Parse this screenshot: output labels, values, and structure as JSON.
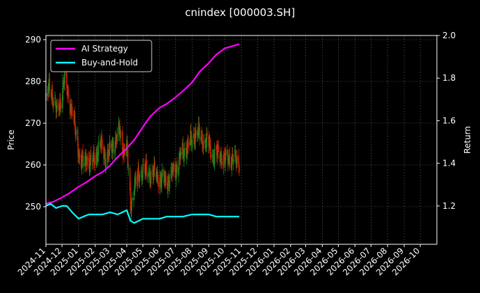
{
  "chart_data": {
    "type": "line",
    "title": "cnindex [000003.SH]",
    "ylabel_left": "Price",
    "ylabel_right": "Return",
    "ylim_left": [
      241,
      291
    ],
    "ylim_right": [
      1.02,
      2.0
    ],
    "yticks_left": [
      250,
      260,
      270,
      280,
      290
    ],
    "yticks_right": [
      1.2,
      1.4,
      1.6,
      1.8,
      2.0
    ],
    "ytick_labels_right": [
      "1.2",
      "1.4",
      "1.6",
      "1.8",
      "2.0"
    ],
    "x_tick_labels": [
      "2024-11",
      "2024-12",
      "2025-01",
      "2025-02",
      "2025-03",
      "2025-04",
      "2025-05",
      "2025-06",
      "2025-07",
      "2025-08",
      "2025-09",
      "2025-10",
      "2025-11",
      "2025-12",
      "2026-01",
      "2026-02",
      "2026-03",
      "2026-04",
      "2026-05",
      "2026-06",
      "2026-07",
      "2026-08",
      "2026-09",
      "2026-10"
    ],
    "xlim": [
      "2024-11-01",
      "2026-11-01"
    ],
    "grid": true,
    "legend_position": "top-left",
    "colors": {
      "up": "#1f8a1f",
      "down": "#cc2200",
      "ai": "#ff00ff",
      "bh": "#00ffff"
    },
    "price_close_points": [
      [
        "2024-11-01",
        275
      ],
      [
        "2024-11-08",
        279
      ],
      [
        "2024-11-15",
        276
      ],
      [
        "2024-11-22",
        272
      ],
      [
        "2024-11-29",
        276
      ],
      [
        "2024-12-06",
        281
      ],
      [
        "2024-12-13",
        276
      ],
      [
        "2024-12-20",
        273
      ],
      [
        "2024-12-27",
        267
      ],
      [
        "2025-01-03",
        262
      ],
      [
        "2025-01-10",
        260
      ],
      [
        "2025-01-17",
        262
      ],
      [
        "2025-01-24",
        260
      ],
      [
        "2025-02-01",
        262
      ],
      [
        "2025-02-10",
        265
      ],
      [
        "2025-02-20",
        262
      ],
      [
        "2025-03-01",
        263
      ],
      [
        "2025-03-10",
        266
      ],
      [
        "2025-03-18",
        268
      ],
      [
        "2025-03-25",
        264
      ],
      [
        "2025-04-01",
        264
      ],
      [
        "2025-04-08",
        250
      ],
      [
        "2025-04-15",
        255
      ],
      [
        "2025-04-22",
        257
      ],
      [
        "2025-05-01",
        259
      ],
      [
        "2025-05-10",
        258
      ],
      [
        "2025-05-20",
        258
      ],
      [
        "2025-06-01",
        257
      ],
      [
        "2025-06-10",
        256
      ],
      [
        "2025-06-20",
        257
      ],
      [
        "2025-07-01",
        259
      ],
      [
        "2025-07-10",
        262
      ],
      [
        "2025-07-20",
        264
      ],
      [
        "2025-08-01",
        266
      ],
      [
        "2025-08-10",
        268
      ],
      [
        "2025-08-20",
        266
      ],
      [
        "2025-09-01",
        265
      ],
      [
        "2025-09-10",
        262
      ],
      [
        "2025-09-20",
        263
      ],
      [
        "2025-10-01",
        261
      ],
      [
        "2025-10-10",
        262
      ],
      [
        "2025-10-20",
        261
      ],
      [
        "2025-10-28",
        261
      ]
    ],
    "series": [
      {
        "name": "AI Strategy",
        "color": "#ff00ff",
        "points": [
          [
            "2024-11-01",
            1.21
          ],
          [
            "2024-11-15",
            1.22
          ],
          [
            "2024-12-01",
            1.24
          ],
          [
            "2024-12-15",
            1.26
          ],
          [
            "2025-01-01",
            1.29
          ],
          [
            "2025-01-15",
            1.31
          ],
          [
            "2025-02-01",
            1.34
          ],
          [
            "2025-02-15",
            1.36
          ],
          [
            "2025-03-01",
            1.39
          ],
          [
            "2025-03-15",
            1.43
          ],
          [
            "2025-04-01",
            1.47
          ],
          [
            "2025-04-15",
            1.51
          ],
          [
            "2025-05-01",
            1.57
          ],
          [
            "2025-05-15",
            1.62
          ],
          [
            "2025-06-01",
            1.66
          ],
          [
            "2025-06-15",
            1.68
          ],
          [
            "2025-07-01",
            1.71
          ],
          [
            "2025-07-15",
            1.74
          ],
          [
            "2025-08-01",
            1.78
          ],
          [
            "2025-08-15",
            1.83
          ],
          [
            "2025-09-01",
            1.87
          ],
          [
            "2025-09-15",
            1.91
          ],
          [
            "2025-10-01",
            1.94
          ],
          [
            "2025-10-15",
            1.95
          ],
          [
            "2025-10-28",
            1.96
          ]
        ]
      },
      {
        "name": "Buy-and-Hold",
        "color": "#00ffff",
        "points": [
          [
            "2024-11-01",
            1.2
          ],
          [
            "2024-11-10",
            1.21
          ],
          [
            "2024-11-20",
            1.19
          ],
          [
            "2024-12-01",
            1.2
          ],
          [
            "2024-12-10",
            1.2
          ],
          [
            "2024-12-20",
            1.17
          ],
          [
            "2025-01-01",
            1.14
          ],
          [
            "2025-01-10",
            1.15
          ],
          [
            "2025-01-20",
            1.16
          ],
          [
            "2025-02-01",
            1.16
          ],
          [
            "2025-02-15",
            1.16
          ],
          [
            "2025-03-01",
            1.17
          ],
          [
            "2025-03-15",
            1.16
          ],
          [
            "2025-04-01",
            1.18
          ],
          [
            "2025-04-08",
            1.13
          ],
          [
            "2025-04-15",
            1.12
          ],
          [
            "2025-05-01",
            1.14
          ],
          [
            "2025-05-15",
            1.14
          ],
          [
            "2025-06-01",
            1.14
          ],
          [
            "2025-06-15",
            1.15
          ],
          [
            "2025-07-01",
            1.15
          ],
          [
            "2025-07-15",
            1.15
          ],
          [
            "2025-08-01",
            1.16
          ],
          [
            "2025-08-15",
            1.16
          ],
          [
            "2025-09-01",
            1.16
          ],
          [
            "2025-09-15",
            1.15
          ],
          [
            "2025-10-01",
            1.15
          ],
          [
            "2025-10-15",
            1.15
          ],
          [
            "2025-10-28",
            1.15
          ]
        ]
      }
    ]
  }
}
